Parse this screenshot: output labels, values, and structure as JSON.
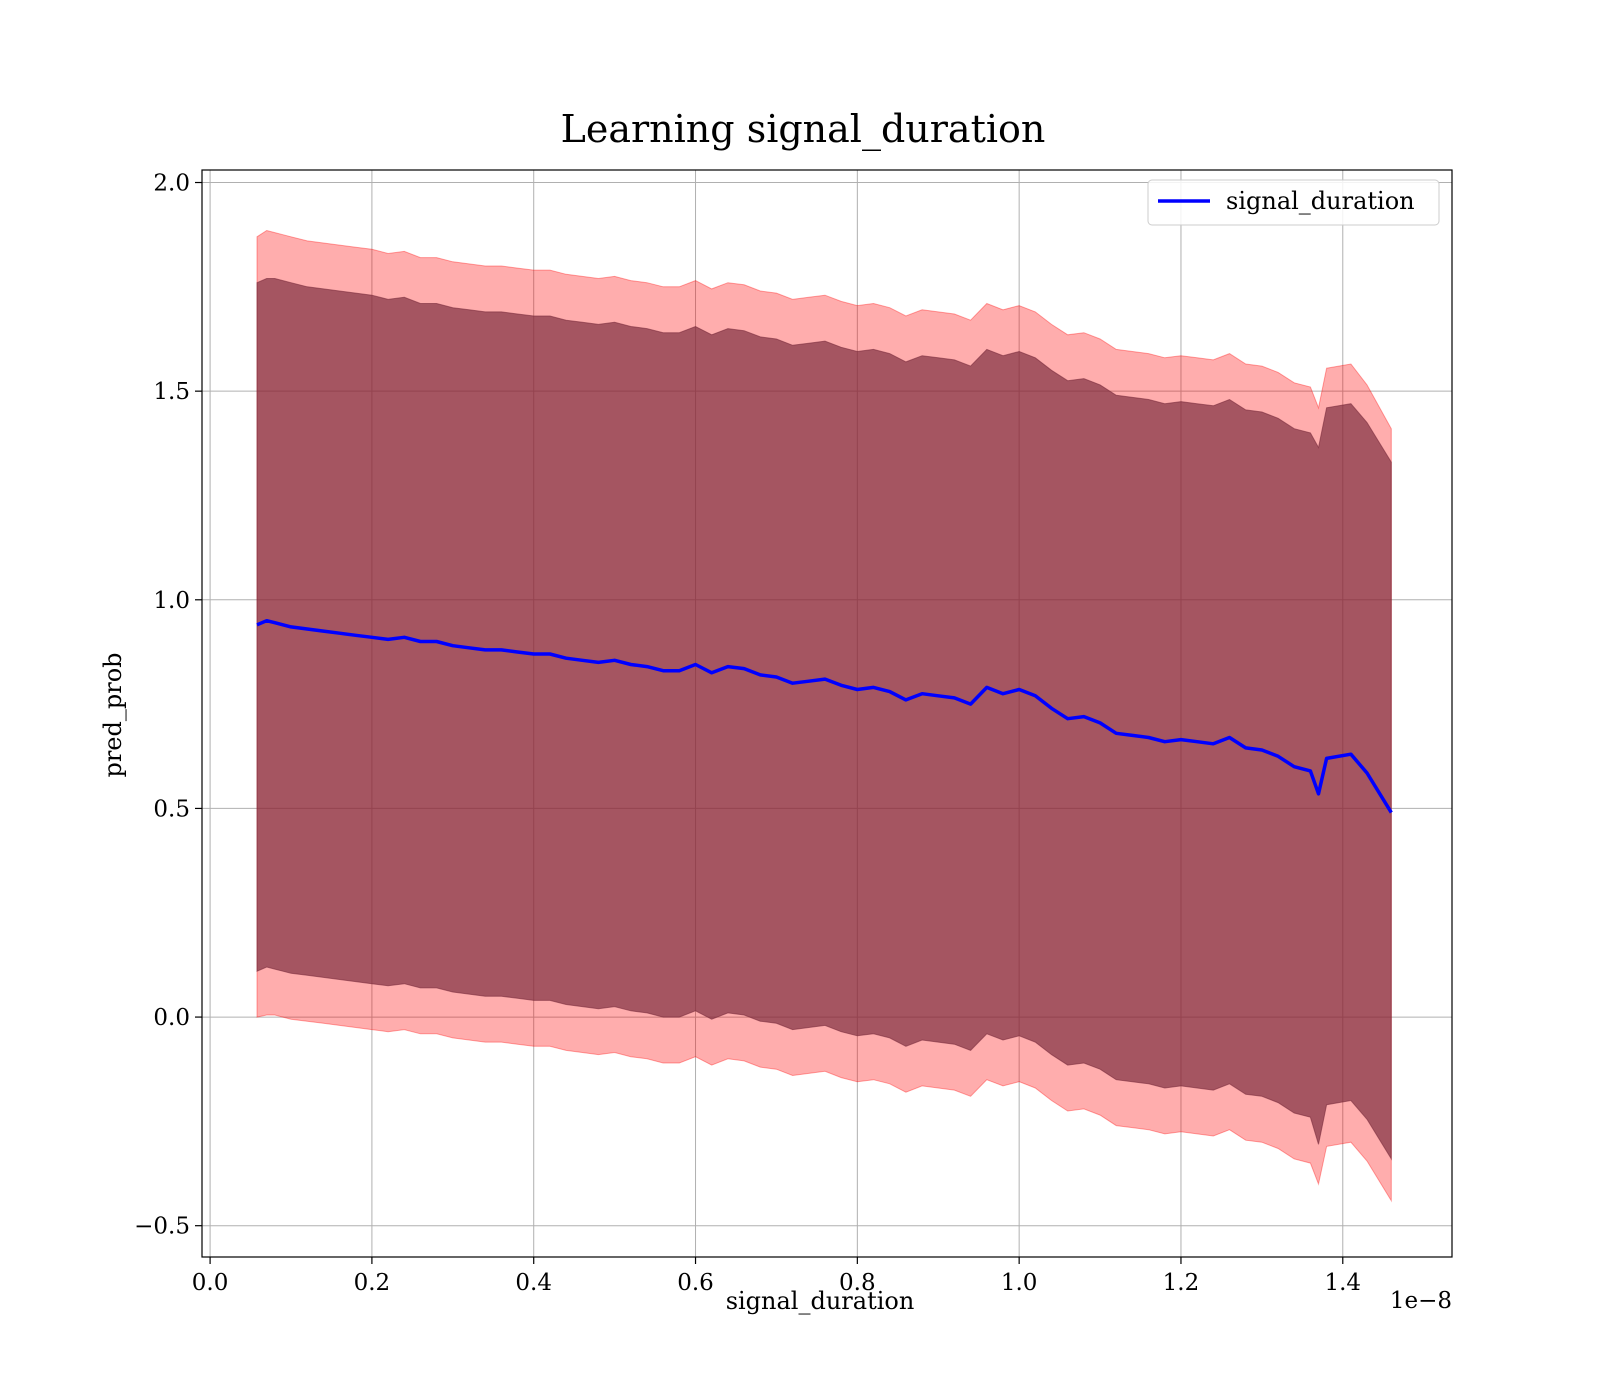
{
  "chart_data": {
    "type": "line",
    "title": "Learning signal_duration",
    "xlabel": "signal_duration",
    "ylabel": "pred_prob",
    "x_scale_label": "1e−8",
    "xlim": [
      -0.01,
      1.535
    ],
    "ylim": [
      -0.575,
      2.03
    ],
    "grid": true,
    "legend": "top-right",
    "x_ticks": [
      0.0,
      0.2,
      0.4,
      0.6,
      0.8,
      1.0,
      1.2,
      1.4
    ],
    "x_tick_labels": [
      "0.0",
      "0.2",
      "0.4",
      "0.6",
      "0.8",
      "1.0",
      "1.2",
      "1.4"
    ],
    "y_ticks": [
      -0.5,
      0.0,
      0.5,
      1.0,
      1.5,
      2.0
    ],
    "y_tick_labels": [
      "−0.5",
      "0.0",
      "0.5",
      "1.0",
      "1.5",
      "2.0"
    ],
    "series": [
      {
        "name": "signal_duration",
        "color": "#0000ff",
        "x": [
          0.058,
          0.07,
          0.08,
          0.09,
          0.1,
          0.12,
          0.14,
          0.16,
          0.18,
          0.2,
          0.22,
          0.24,
          0.26,
          0.28,
          0.3,
          0.32,
          0.34,
          0.36,
          0.38,
          0.4,
          0.42,
          0.44,
          0.46,
          0.48,
          0.5,
          0.52,
          0.54,
          0.56,
          0.58,
          0.6,
          0.62,
          0.64,
          0.66,
          0.68,
          0.7,
          0.72,
          0.74,
          0.76,
          0.78,
          0.8,
          0.82,
          0.84,
          0.86,
          0.88,
          0.9,
          0.92,
          0.94,
          0.96,
          0.98,
          1.0,
          1.02,
          1.04,
          1.06,
          1.08,
          1.1,
          1.12,
          1.14,
          1.16,
          1.18,
          1.2,
          1.22,
          1.24,
          1.26,
          1.28,
          1.3,
          1.32,
          1.34,
          1.36,
          1.37,
          1.38,
          1.41,
          1.43,
          1.46
        ],
        "y": [
          0.94,
          0.95,
          0.945,
          0.94,
          0.935,
          0.93,
          0.925,
          0.92,
          0.915,
          0.91,
          0.905,
          0.91,
          0.9,
          0.9,
          0.89,
          0.885,
          0.88,
          0.88,
          0.875,
          0.87,
          0.87,
          0.86,
          0.855,
          0.85,
          0.855,
          0.845,
          0.84,
          0.83,
          0.83,
          0.845,
          0.825,
          0.84,
          0.835,
          0.82,
          0.815,
          0.8,
          0.805,
          0.81,
          0.795,
          0.785,
          0.79,
          0.78,
          0.76,
          0.775,
          0.77,
          0.765,
          0.75,
          0.79,
          0.775,
          0.785,
          0.77,
          0.74,
          0.715,
          0.72,
          0.705,
          0.68,
          0.675,
          0.67,
          0.66,
          0.665,
          0.66,
          0.655,
          0.67,
          0.645,
          0.64,
          0.625,
          0.6,
          0.59,
          0.535,
          0.62,
          0.63,
          0.585,
          0.49
        ],
        "inner_band": {
          "color": "#7a2b3c",
          "upper": [
            1.76,
            1.77,
            1.77,
            1.765,
            1.76,
            1.75,
            1.745,
            1.74,
            1.735,
            1.73,
            1.72,
            1.725,
            1.71,
            1.71,
            1.7,
            1.695,
            1.69,
            1.69,
            1.685,
            1.68,
            1.68,
            1.67,
            1.665,
            1.66,
            1.665,
            1.655,
            1.65,
            1.64,
            1.64,
            1.655,
            1.635,
            1.65,
            1.645,
            1.63,
            1.625,
            1.61,
            1.615,
            1.62,
            1.605,
            1.595,
            1.6,
            1.59,
            1.57,
            1.585,
            1.58,
            1.575,
            1.56,
            1.6,
            1.585,
            1.595,
            1.58,
            1.55,
            1.525,
            1.53,
            1.515,
            1.49,
            1.485,
            1.48,
            1.47,
            1.475,
            1.47,
            1.465,
            1.48,
            1.455,
            1.45,
            1.435,
            1.41,
            1.4,
            1.365,
            1.46,
            1.47,
            1.425,
            1.33
          ],
          "lower": [
            0.11,
            0.12,
            0.115,
            0.11,
            0.105,
            0.1,
            0.095,
            0.09,
            0.085,
            0.08,
            0.075,
            0.08,
            0.07,
            0.07,
            0.06,
            0.055,
            0.05,
            0.05,
            0.045,
            0.04,
            0.04,
            0.03,
            0.025,
            0.02,
            0.025,
            0.015,
            0.01,
            0.0,
            0.0,
            0.015,
            -0.005,
            0.01,
            0.005,
            -0.01,
            -0.015,
            -0.03,
            -0.025,
            -0.02,
            -0.035,
            -0.045,
            -0.04,
            -0.05,
            -0.07,
            -0.055,
            -0.06,
            -0.065,
            -0.08,
            -0.04,
            -0.055,
            -0.045,
            -0.06,
            -0.09,
            -0.115,
            -0.11,
            -0.125,
            -0.15,
            -0.155,
            -0.16,
            -0.17,
            -0.165,
            -0.17,
            -0.175,
            -0.16,
            -0.185,
            -0.19,
            -0.205,
            -0.23,
            -0.24,
            -0.305,
            -0.21,
            -0.2,
            -0.245,
            -0.34
          ]
        },
        "outer_band": {
          "color": "#ff0000",
          "upper": [
            1.87,
            1.885,
            1.88,
            1.875,
            1.87,
            1.86,
            1.855,
            1.85,
            1.845,
            1.84,
            1.83,
            1.835,
            1.82,
            1.82,
            1.81,
            1.805,
            1.8,
            1.8,
            1.795,
            1.79,
            1.79,
            1.78,
            1.775,
            1.77,
            1.775,
            1.765,
            1.76,
            1.75,
            1.75,
            1.765,
            1.745,
            1.76,
            1.755,
            1.74,
            1.735,
            1.72,
            1.725,
            1.73,
            1.715,
            1.705,
            1.71,
            1.7,
            1.68,
            1.695,
            1.69,
            1.685,
            1.67,
            1.71,
            1.695,
            1.705,
            1.69,
            1.66,
            1.635,
            1.64,
            1.625,
            1.6,
            1.595,
            1.59,
            1.58,
            1.585,
            1.58,
            1.575,
            1.59,
            1.565,
            1.56,
            1.545,
            1.52,
            1.51,
            1.46,
            1.555,
            1.565,
            1.515,
            1.41
          ],
          "lower": [
            0.0,
            0.005,
            0.005,
            0.0,
            -0.005,
            -0.01,
            -0.015,
            -0.02,
            -0.025,
            -0.03,
            -0.035,
            -0.03,
            -0.04,
            -0.04,
            -0.05,
            -0.055,
            -0.06,
            -0.06,
            -0.065,
            -0.07,
            -0.07,
            -0.08,
            -0.085,
            -0.09,
            -0.085,
            -0.095,
            -0.1,
            -0.11,
            -0.11,
            -0.095,
            -0.115,
            -0.1,
            -0.105,
            -0.12,
            -0.125,
            -0.14,
            -0.135,
            -0.13,
            -0.145,
            -0.155,
            -0.15,
            -0.16,
            -0.18,
            -0.165,
            -0.17,
            -0.175,
            -0.19,
            -0.15,
            -0.165,
            -0.155,
            -0.17,
            -0.2,
            -0.225,
            -0.22,
            -0.235,
            -0.26,
            -0.265,
            -0.27,
            -0.28,
            -0.275,
            -0.28,
            -0.285,
            -0.27,
            -0.295,
            -0.3,
            -0.315,
            -0.34,
            -0.35,
            -0.4,
            -0.31,
            -0.3,
            -0.345,
            -0.44
          ]
        }
      }
    ]
  }
}
